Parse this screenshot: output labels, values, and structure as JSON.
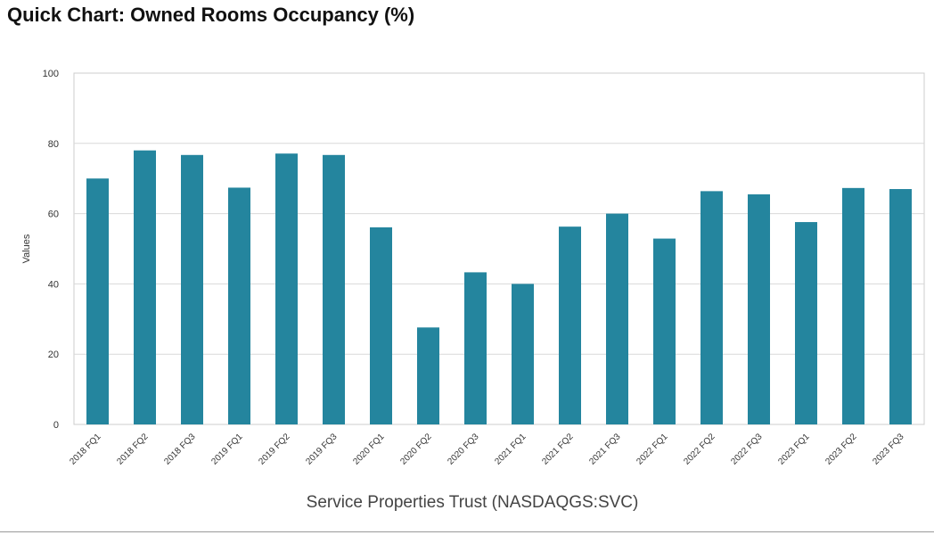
{
  "colors": {
    "bar": "#24859e",
    "grid": "#d9d9d9",
    "axis": "#cccccc",
    "text": "#333333"
  },
  "chart_data": {
    "type": "bar",
    "title": "Quick Chart: Owned Rooms Occupancy (%)",
    "xlabel": "Service Properties Trust (NASDAQGS:SVC)",
    "ylabel": "Values",
    "ylim": [
      0,
      100
    ],
    "yticks": [
      0,
      20,
      40,
      60,
      80,
      100
    ],
    "grid": true,
    "categories": [
      "2018 FQ1",
      "2018 FQ2",
      "2018 FQ3",
      "2019 FQ1",
      "2019 FQ2",
      "2019 FQ3",
      "2020 FQ1",
      "2020 FQ2",
      "2020 FQ3",
      "2021 FQ1",
      "2021 FQ2",
      "2021 FQ3",
      "2022 FQ1",
      "2022 FQ2",
      "2022 FQ3",
      "2023 FQ1",
      "2023 FQ2",
      "2023 FQ3"
    ],
    "values": [
      70,
      78,
      76.7,
      67.4,
      77.1,
      76.7,
      56.1,
      27.6,
      43.3,
      40,
      56.3,
      60,
      52.9,
      66.4,
      65.5,
      57.6,
      67.3,
      67
    ]
  }
}
